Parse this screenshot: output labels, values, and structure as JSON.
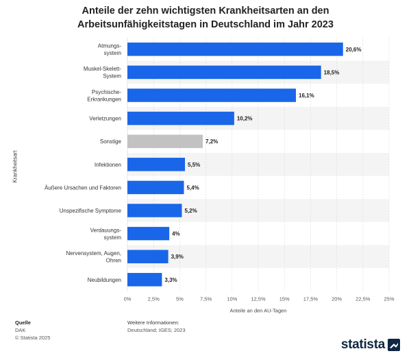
{
  "title": "Anteile der zehn wichtigsten Krankheitsarten an den Arbeitsunfähigkeitstagen in Deutschland im Jahr 2023",
  "colors": {
    "accent": "#1a66e8",
    "highlight": "#c2c2c2",
    "band": "#f4f4f4",
    "grid": "#d6d6d6"
  },
  "chart_data": {
    "type": "bar",
    "orientation": "horizontal",
    "title": "Anteile der zehn wichtigsten Krankheitsarten an den Arbeitsunfähigkeitstagen in Deutschland im Jahr 2023",
    "xlabel": "Anteile an den AU-Tagen",
    "ylabel": "Krankheitsart",
    "xlim": [
      0,
      25
    ],
    "x_ticks": [
      "0%",
      "2,5%",
      "5%",
      "7,5%",
      "10%",
      "12,5%",
      "15%",
      "17,5%",
      "20%",
      "22,5%",
      "25%"
    ],
    "categories": [
      "Atmungs-\nsystem",
      "Muskel-Skelett-\nSystem",
      "Psychische-\nErkrankungen",
      "Verletzungen",
      "Sonstige",
      "Infektionen",
      "Äußere Ursachen und Faktoren",
      "Unspezifische Symptome",
      "Verdauungs-\nsystem",
      "Nervensystem, Augen,\nOhren",
      "Neubildungen"
    ],
    "values": [
      20.6,
      18.5,
      16.1,
      10.2,
      7.2,
      5.5,
      5.4,
      5.2,
      4,
      3.9,
      3.3
    ],
    "value_labels": [
      "20,6%",
      "18,5%",
      "16,1%",
      "10,2%",
      "7,2%",
      "5,5%",
      "5,4%",
      "5,2%",
      "4%",
      "3,9%",
      "3,3%"
    ],
    "highlighted": [
      "Sonstige"
    ],
    "grid": true,
    "legend": "none"
  },
  "footer": {
    "source_heading": "Quelle",
    "source": "DAK",
    "copyright": "© Statista 2025",
    "info_heading": "Weitere Informationen:",
    "info": "Deutschland; IGES; 2023"
  },
  "brand": {
    "name": "statista"
  }
}
